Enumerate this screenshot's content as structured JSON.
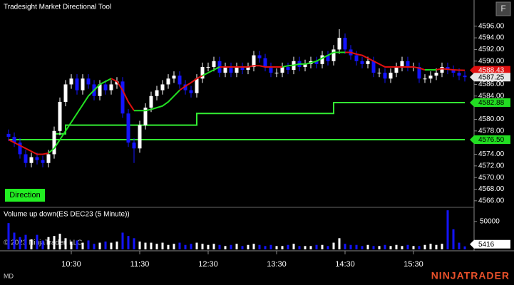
{
  "chart_data": [
    {
      "type": "candlestick",
      "title": "Tradesight Market Directional Tool",
      "x": [
        "09:35",
        "09:40",
        "09:45",
        "09:50",
        "09:55",
        "10:00",
        "10:05",
        "10:10",
        "10:15",
        "10:20",
        "10:25",
        "10:30",
        "10:35",
        "10:40",
        "10:45",
        "10:50",
        "10:55",
        "11:00",
        "11:05",
        "11:10",
        "11:15",
        "11:20",
        "11:25",
        "11:30",
        "11:35",
        "11:40",
        "11:45",
        "11:50",
        "11:55",
        "12:00",
        "12:05",
        "12:10",
        "12:15",
        "12:20",
        "12:25",
        "12:30",
        "12:35",
        "12:40",
        "12:45",
        "12:50",
        "12:55",
        "13:00",
        "13:05",
        "13:10",
        "13:15",
        "13:20",
        "13:25",
        "13:30",
        "13:35",
        "13:40",
        "13:45",
        "13:50",
        "13:55",
        "14:00",
        "14:05",
        "14:10",
        "14:15",
        "14:20",
        "14:25",
        "14:30",
        "14:35",
        "14:40",
        "14:45",
        "14:50",
        "14:55",
        "15:00",
        "15:05",
        "15:10",
        "15:15",
        "15:20",
        "15:25",
        "15:30",
        "15:35",
        "15:40",
        "15:45",
        "15:50",
        "15:55",
        "16:00",
        "16:05",
        "16:10",
        "16:15"
      ],
      "open": [
        4577.5,
        4577,
        4576,
        4574,
        4572.5,
        4573.5,
        4573,
        4572.5,
        4574,
        4578,
        4583,
        4586,
        4587,
        4585,
        4587,
        4586,
        4584,
        4586,
        4585,
        4586,
        4586.5,
        4581,
        4576,
        4575,
        4579,
        4582,
        4584,
        4585,
        4586,
        4587,
        4587.5,
        4586,
        4585,
        4584.5,
        4587,
        4589,
        4589,
        4590,
        4588,
        4589,
        4588,
        4589,
        4588.5,
        4589,
        4591,
        4590.5,
        4589,
        4588,
        4588,
        4589,
        4588.5,
        4590,
        4589,
        4589.5,
        4590,
        4589.5,
        4591,
        4590,
        4592,
        4594,
        4592,
        4591,
        4590,
        4589.5,
        4590,
        4588,
        4588,
        4587,
        4588,
        4589,
        4590,
        4589,
        4589,
        4587,
        4587,
        4587.5,
        4588,
        4589,
        4588.5,
        4588,
        4587.5
      ],
      "high": [
        4578.25,
        4577.75,
        4576.75,
        4574.75,
        4574.25,
        4574.25,
        4573.75,
        4574.75,
        4578.75,
        4583.75,
        4586.75,
        4587.75,
        4587.75,
        4587.75,
        4587.75,
        4586.75,
        4586.75,
        4586.75,
        4586.75,
        4587.25,
        4587.25,
        4581.75,
        4576.75,
        4579.75,
        4582.75,
        4584.75,
        4585.75,
        4586.75,
        4587.75,
        4588.25,
        4588.25,
        4586.75,
        4585.75,
        4587.75,
        4589.75,
        4589.75,
        4590.75,
        4590.75,
        4589.75,
        4589.75,
        4589.75,
        4589.75,
        4589.75,
        4591.75,
        4591.75,
        4591.25,
        4589.75,
        4588.75,
        4589.75,
        4589.75,
        4590.75,
        4590.75,
        4590.25,
        4590.75,
        4590.75,
        4591.75,
        4591.75,
        4592.75,
        4595.5,
        4594.75,
        4592.75,
        4591.75,
        4590.75,
        4590.75,
        4590.75,
        4588.75,
        4588.75,
        4588.75,
        4589.75,
        4590.75,
        4590.75,
        4589.75,
        4589.75,
        4587.75,
        4588.25,
        4588.75,
        4589.75,
        4589.75,
        4589.25,
        4588.75,
        4588.25
      ],
      "low": [
        4576.25,
        4575.25,
        4573.25,
        4571.75,
        4571.75,
        4572.25,
        4571.75,
        4571.75,
        4573.25,
        4577.25,
        4582.25,
        4585.25,
        4584.25,
        4584.25,
        4585.25,
        4583.25,
        4583.25,
        4584.25,
        4584.25,
        4585.25,
        4580.25,
        4575.25,
        4572.5,
        4574.25,
        4578.25,
        4581.25,
        4583.25,
        4584.25,
        4585.25,
        4586.25,
        4585.25,
        4584.25,
        4583.75,
        4583.75,
        4586.25,
        4588.25,
        4588.25,
        4587.25,
        4587.25,
        4587.25,
        4587.25,
        4587.75,
        4587.75,
        4588.25,
        4589.75,
        4588.25,
        4587.25,
        4587.25,
        4587.25,
        4587.75,
        4587.75,
        4588.25,
        4588.25,
        4588.75,
        4588.75,
        4588.75,
        4589.25,
        4589.25,
        4591.25,
        4591.25,
        4590.25,
        4589.25,
        4588.75,
        4588.75,
        4587.25,
        4587.25,
        4586.25,
        4586.25,
        4587.25,
        4588.25,
        4588.25,
        4588.25,
        4586.25,
        4586.25,
        4586.25,
        4586.75,
        4587.25,
        4587.75,
        4587.25,
        4586.75,
        4586.5
      ],
      "close": [
        4577,
        4576,
        4574,
        4572.5,
        4573.5,
        4573,
        4572.5,
        4574,
        4578,
        4583,
        4586,
        4587,
        4585,
        4587,
        4586,
        4584,
        4586,
        4585,
        4586,
        4586.5,
        4581,
        4576,
        4575,
        4579,
        4582,
        4584,
        4585,
        4586,
        4587,
        4587.5,
        4586,
        4585,
        4584.5,
        4587,
        4589,
        4589,
        4590,
        4588,
        4589,
        4588,
        4589,
        4588.5,
        4589,
        4591,
        4590.5,
        4589,
        4588,
        4588,
        4589,
        4588.5,
        4590,
        4589,
        4589.5,
        4590,
        4589.5,
        4591,
        4590,
        4592,
        4594,
        4592,
        4591,
        4590,
        4589.5,
        4590,
        4588,
        4588,
        4587,
        4588,
        4589,
        4590,
        4589,
        4589,
        4587,
        4587,
        4587.5,
        4588,
        4589,
        4588.5,
        4588,
        4587.5,
        4587.25
      ],
      "up_color": "#ffffff",
      "down_color": "#1414ff",
      "trend": {
        "values": [
          4576.5,
          4576,
          4575.5,
          4575,
          4574.5,
          4574,
          4574,
          4574.2,
          4575,
          4576.5,
          4578,
          4579.5,
          4581,
          4582.5,
          4584,
          4585,
          4586,
          4586.5,
          4587,
          4586.5,
          4585,
          4583,
          4581.5,
          4581.5,
          4581.5,
          4581.7,
          4582,
          4582.3,
          4583,
          4584,
          4585,
          4585.7,
          4586.3,
          4587,
          4587.5,
          4588,
          4588.5,
          4589,
          4589,
          4589,
          4589,
          4589,
          4589,
          4589.2,
          4589.2,
          4589,
          4589,
          4589,
          4589,
          4589.2,
          4589.3,
          4589.5,
          4589.5,
          4589.7,
          4590,
          4590.5,
          4591,
          4591.5,
          4591.5,
          4591.5,
          4591.5,
          4591.2,
          4591,
          4590.5,
          4590,
          4589.5,
          4589,
          4589,
          4589,
          4589,
          4589,
          4589,
          4588.8,
          4588.5,
          4588.5,
          4588.5,
          4588.7,
          4588.6,
          4588.5,
          4588.45,
          4588.43
        ],
        "segment_colors": [
          "#e01010",
          "#e01010",
          "#e01010",
          "#e01010",
          "#e01010",
          "#e01010",
          "#e01010",
          "#e01010",
          "#22e022",
          "#22e022",
          "#22e022",
          "#22e022",
          "#22e022",
          "#22e022",
          "#22e022",
          "#22e022",
          "#22e022",
          "#22e022",
          "#22e022",
          "#e01010",
          "#e01010",
          "#e01010",
          "#e01010",
          "#22e022",
          "#22e022",
          "#22e022",
          "#22e022",
          "#22e022",
          "#22e022",
          "#22e022",
          "#22e022",
          "#e01010",
          "#e01010",
          "#e01010",
          "#e01010",
          "#22e022",
          "#22e022",
          "#22e022",
          "#e01010",
          "#e01010",
          "#e01010",
          "#e01010",
          "#e01010",
          "#e01010",
          "#e01010",
          "#e01010",
          "#e01010",
          "#e01010",
          "#e01010",
          "#22e022",
          "#22e022",
          "#22e022",
          "#22e022",
          "#22e022",
          "#22e022",
          "#22e022",
          "#22e022",
          "#22e022",
          "#22e022",
          "#22e022",
          "#e01010",
          "#e01010",
          "#e01010",
          "#e01010",
          "#e01010",
          "#e01010",
          "#e01010",
          "#e01010",
          "#e01010",
          "#e01010",
          "#e01010",
          "#e01010",
          "#e01010",
          "#e01010",
          "#22e022",
          "#22e022",
          "#e01010",
          "#e01010",
          "#e01010",
          "#e01010",
          "#e01010"
        ]
      },
      "steps": [
        {
          "color": "#33ee33",
          "x": [
            "09:35"
          ],
          "values": [
            4576.5
          ]
        },
        {
          "color": "#33ee33",
          "x": [
            "10:10",
            "10:15",
            "10:25",
            "12:20",
            "14:20"
          ],
          "values": [
            4576.5,
            4577.5,
            4579,
            4581,
            4582.88
          ]
        }
      ],
      "markers": [
        {
          "value": 4588.43,
          "color": "#e01010"
        },
        {
          "value": 4587.25,
          "color": "#e6e6e6"
        },
        {
          "value": 4582.88,
          "color": "#22dd22"
        },
        {
          "value": 4576.5,
          "label": "4576.50",
          "color": "#22dd22"
        }
      ],
      "xlim": [
        "09:30",
        "16:20"
      ],
      "xticks": [
        "10:30",
        "11:30",
        "12:30",
        "13:30",
        "14:30",
        "15:30"
      ],
      "ylim": [
        4565,
        4600.5
      ],
      "yticks": [
        {
          "value": 4566,
          "label": "4566.00"
        },
        {
          "value": 4568,
          "label": "4568.00"
        },
        {
          "value": 4570,
          "label": "4570.00"
        },
        {
          "value": 4572,
          "label": "4572.00"
        },
        {
          "value": 4574,
          "label": "4574.00"
        },
        {
          "value": 4578,
          "label": "4578.00"
        },
        {
          "value": 4580,
          "label": "4580.00"
        },
        {
          "value": 4584,
          "label": "4584.00"
        },
        {
          "value": 4586,
          "label": "4586.00"
        },
        {
          "value": 4590,
          "label": "4590.00"
        },
        {
          "value": 4592,
          "label": "4592.00"
        },
        {
          "value": 4594,
          "label": "4594.00"
        },
        {
          "value": 4596,
          "label": "4596.00"
        }
      ]
    },
    {
      "type": "bar",
      "title": "Volume up down(ES DEC23 (5 Minute))",
      "values": [
        47000,
        30000,
        22000,
        26000,
        18000,
        26000,
        16000,
        22000,
        24000,
        28000,
        20000,
        14000,
        16000,
        12000,
        16000,
        10000,
        12000,
        14000,
        12000,
        14000,
        30000,
        24000,
        20000,
        14000,
        12000,
        12000,
        10000,
        12000,
        8000,
        10000,
        12000,
        8000,
        10000,
        12000,
        10000,
        8000,
        10000,
        8000,
        6000,
        8000,
        10000,
        6000,
        8000,
        10000,
        8000,
        6000,
        8000,
        6000,
        6000,
        8000,
        10000,
        6000,
        6000,
        6000,
        8000,
        8000,
        6000,
        12000,
        20000,
        10000,
        8000,
        8000,
        6000,
        8000,
        6000,
        6000,
        8000,
        6000,
        8000,
        6000,
        8000,
        6000,
        6000,
        8000,
        10000,
        8000,
        10000,
        70000,
        36000,
        12000,
        5416
      ],
      "ylim": [
        0,
        74000
      ],
      "yticks": [
        50000
      ],
      "markers": [
        {
          "value": 5416,
          "color": "#ffffff"
        }
      ]
    }
  ],
  "ui": {
    "button": "F",
    "indicator": "Direction",
    "copyright": "© 2023 NinjaTrader, LLC",
    "status": "MD",
    "brand": "NINJATRADER"
  }
}
